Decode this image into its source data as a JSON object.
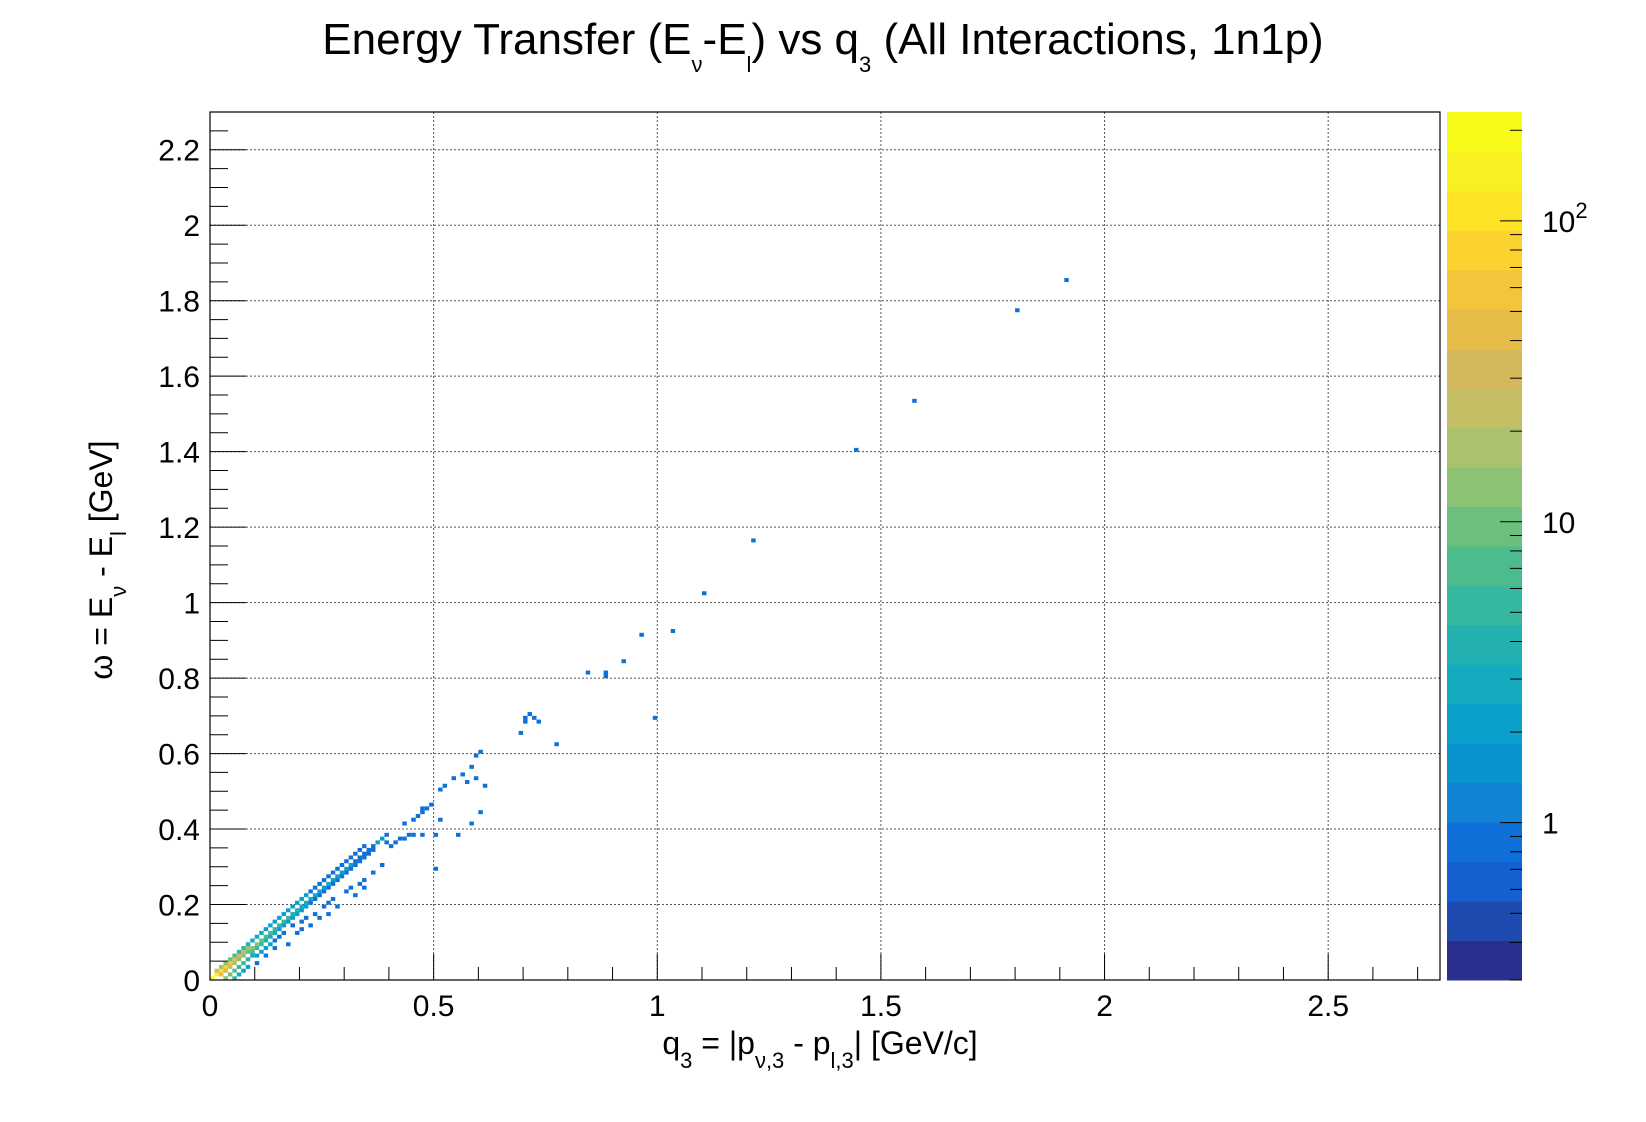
{
  "chart_data": {
    "type": "heatmap",
    "title_parts": [
      "Energy Transfer (E",
      "ν",
      "-E",
      "l",
      ") vs q",
      "3",
      " (All Interactions, 1n1p)"
    ],
    "xlabel_parts": [
      "q",
      "3",
      " = |p",
      "ν,3",
      " - p",
      "l,3",
      "| [GeV/c]"
    ],
    "ylabel_parts": [
      "ω = E",
      "ν",
      " - E",
      "l",
      " [GeV]"
    ],
    "xlim": [
      0,
      2.75
    ],
    "ylim": [
      0,
      2.3
    ],
    "x_ticks": [
      0,
      0.5,
      1,
      1.5,
      2,
      2.5
    ],
    "x_tick_labels": [
      "0",
      "0.5",
      "1",
      "1.5",
      "2",
      "2.5"
    ],
    "y_ticks": [
      0,
      0.2,
      0.4,
      0.6,
      0.8,
      1,
      1.2,
      1.4,
      1.6,
      1.8,
      2,
      2.2
    ],
    "y_tick_labels": [
      "0",
      "0.2",
      "0.4",
      "0.6",
      "0.8",
      "1",
      "1.2",
      "1.4",
      "1.6",
      "1.8",
      "2",
      "2.2"
    ],
    "grid": true,
    "z_scale": "log",
    "zlim": [
      0.3,
      230
    ],
    "z_ticks": [
      1,
      10,
      100
    ],
    "z_tick_labels": [
      "1",
      "10",
      "10^2"
    ],
    "palette": [
      "#2a2f8e",
      "#1f4bb0",
      "#1460d0",
      "#0e70d8",
      "#1282d4",
      "#0a94cf",
      "#0aa0cb",
      "#14aac0",
      "#22b0b0",
      "#36b8a0",
      "#4cbc8c",
      "#6ac07c",
      "#8cc274",
      "#aac26c",
      "#c4be64",
      "#d6b85c",
      "#e6bc48",
      "#f4c43a",
      "#fcd22e",
      "#fce324",
      "#f8f020",
      "#f8fa1a"
    ],
    "cells": [
      [
        0.005,
        0.005,
        200
      ],
      [
        0.015,
        0.015,
        150
      ],
      [
        0.025,
        0.025,
        120
      ],
      [
        0.035,
        0.035,
        80
      ],
      [
        0.045,
        0.045,
        60
      ],
      [
        0.055,
        0.055,
        45
      ],
      [
        0.065,
        0.065,
        35
      ],
      [
        0.075,
        0.075,
        25
      ],
      [
        0.085,
        0.085,
        20
      ],
      [
        0.095,
        0.085,
        15
      ],
      [
        0.105,
        0.095,
        12
      ],
      [
        0.115,
        0.105,
        10
      ],
      [
        0.125,
        0.115,
        8
      ],
      [
        0.135,
        0.125,
        7
      ],
      [
        0.145,
        0.135,
        6
      ],
      [
        0.155,
        0.145,
        5
      ],
      [
        0.165,
        0.155,
        6
      ],
      [
        0.175,
        0.165,
        5
      ],
      [
        0.185,
        0.175,
        4
      ],
      [
        0.195,
        0.185,
        4
      ],
      [
        0.205,
        0.195,
        3
      ],
      [
        0.215,
        0.205,
        3
      ],
      [
        0.225,
        0.215,
        3
      ],
      [
        0.235,
        0.225,
        3
      ],
      [
        0.245,
        0.235,
        2
      ],
      [
        0.255,
        0.245,
        2
      ],
      [
        0.265,
        0.255,
        3
      ],
      [
        0.275,
        0.265,
        2
      ],
      [
        0.285,
        0.275,
        2
      ],
      [
        0.295,
        0.285,
        2
      ],
      [
        0.305,
        0.295,
        2
      ],
      [
        0.315,
        0.305,
        2
      ],
      [
        0.325,
        0.315,
        1
      ],
      [
        0.335,
        0.325,
        1
      ],
      [
        0.345,
        0.335,
        1
      ],
      [
        0.355,
        0.345,
        1
      ],
      [
        0.365,
        0.355,
        1
      ],
      [
        0.375,
        0.365,
        2
      ],
      [
        0.385,
        0.375,
        2
      ],
      [
        0.395,
        0.385,
        1
      ],
      [
        0.025,
        0.015,
        40
      ],
      [
        0.035,
        0.025,
        30
      ],
      [
        0.045,
        0.035,
        25
      ],
      [
        0.055,
        0.045,
        20
      ],
      [
        0.065,
        0.055,
        15
      ],
      [
        0.075,
        0.065,
        12
      ],
      [
        0.085,
        0.075,
        10
      ],
      [
        0.095,
        0.075,
        8
      ],
      [
        0.105,
        0.085,
        6
      ],
      [
        0.115,
        0.095,
        5
      ],
      [
        0.125,
        0.105,
        4
      ],
      [
        0.135,
        0.115,
        3
      ],
      [
        0.145,
        0.125,
        3
      ],
      [
        0.155,
        0.135,
        2
      ],
      [
        0.165,
        0.145,
        2
      ],
      [
        0.175,
        0.155,
        2
      ],
      [
        0.185,
        0.165,
        2
      ],
      [
        0.195,
        0.175,
        2
      ],
      [
        0.205,
        0.185,
        2
      ],
      [
        0.215,
        0.195,
        2
      ],
      [
        0.225,
        0.205,
        1
      ],
      [
        0.235,
        0.215,
        1
      ],
      [
        0.245,
        0.225,
        1
      ],
      [
        0.255,
        0.235,
        1
      ],
      [
        0.265,
        0.245,
        1
      ],
      [
        0.275,
        0.255,
        1
      ],
      [
        0.285,
        0.265,
        1
      ],
      [
        0.295,
        0.275,
        1
      ],
      [
        0.305,
        0.285,
        1
      ],
      [
        0.315,
        0.295,
        1
      ],
      [
        0.325,
        0.305,
        1
      ],
      [
        0.335,
        0.315,
        1
      ],
      [
        0.345,
        0.325,
        1
      ],
      [
        0.355,
        0.335,
        1
      ],
      [
        0.365,
        0.345,
        1
      ],
      [
        0.015,
        0.025,
        30
      ],
      [
        0.025,
        0.035,
        20
      ],
      [
        0.035,
        0.045,
        12
      ],
      [
        0.045,
        0.055,
        10
      ],
      [
        0.055,
        0.065,
        8
      ],
      [
        0.065,
        0.075,
        6
      ],
      [
        0.075,
        0.085,
        5
      ],
      [
        0.085,
        0.095,
        4
      ],
      [
        0.095,
        0.105,
        3
      ],
      [
        0.105,
        0.115,
        3
      ],
      [
        0.115,
        0.125,
        3
      ],
      [
        0.125,
        0.135,
        2
      ],
      [
        0.135,
        0.145,
        2
      ],
      [
        0.145,
        0.155,
        2
      ],
      [
        0.155,
        0.165,
        2
      ],
      [
        0.165,
        0.175,
        2
      ],
      [
        0.175,
        0.185,
        2
      ],
      [
        0.185,
        0.195,
        2
      ],
      [
        0.195,
        0.205,
        2
      ],
      [
        0.205,
        0.215,
        2
      ],
      [
        0.215,
        0.225,
        2
      ],
      [
        0.225,
        0.235,
        1
      ],
      [
        0.235,
        0.245,
        1
      ],
      [
        0.245,
        0.255,
        1
      ],
      [
        0.255,
        0.265,
        1
      ],
      [
        0.265,
        0.275,
        1
      ],
      [
        0.275,
        0.285,
        1
      ],
      [
        0.285,
        0.295,
        1
      ],
      [
        0.295,
        0.305,
        1
      ],
      [
        0.305,
        0.315,
        1
      ],
      [
        0.315,
        0.325,
        1
      ],
      [
        0.325,
        0.335,
        1
      ],
      [
        0.335,
        0.345,
        1
      ],
      [
        0.345,
        0.355,
        1
      ],
      [
        0.035,
        0.005,
        15
      ],
      [
        0.045,
        0.015,
        10
      ],
      [
        0.055,
        0.025,
        8
      ],
      [
        0.065,
        0.035,
        6
      ],
      [
        0.075,
        0.045,
        5
      ],
      [
        0.085,
        0.055,
        4
      ],
      [
        0.095,
        0.065,
        3
      ],
      [
        0.105,
        0.065,
        2
      ],
      [
        0.115,
        0.075,
        2
      ],
      [
        0.125,
        0.085,
        2
      ],
      [
        0.135,
        0.095,
        2
      ],
      [
        0.145,
        0.105,
        1
      ],
      [
        0.155,
        0.115,
        1
      ],
      [
        0.165,
        0.125,
        1
      ],
      [
        0.185,
        0.145,
        1
      ],
      [
        0.205,
        0.155,
        1
      ],
      [
        0.215,
        0.165,
        1
      ],
      [
        0.235,
        0.175,
        1
      ],
      [
        0.255,
        0.195,
        1
      ],
      [
        0.265,
        0.205,
        1
      ],
      [
        0.275,
        0.215,
        1
      ],
      [
        0.305,
        0.235,
        1
      ],
      [
        0.315,
        0.245,
        1
      ],
      [
        0.335,
        0.255,
        1
      ],
      [
        0.345,
        0.265,
        1
      ],
      [
        0.365,
        0.285,
        1
      ],
      [
        0.385,
        0.305,
        1
      ],
      [
        0.055,
        0.005,
        5
      ],
      [
        0.065,
        0.015,
        3
      ],
      [
        0.075,
        0.025,
        2
      ],
      [
        0.085,
        0.035,
        2
      ],
      [
        0.105,
        0.045,
        1
      ],
      [
        0.125,
        0.065,
        1
      ],
      [
        0.145,
        0.085,
        1
      ],
      [
        0.175,
        0.095,
        1
      ],
      [
        0.195,
        0.125,
        1
      ],
      [
        0.205,
        0.135,
        1
      ],
      [
        0.225,
        0.145,
        1
      ],
      [
        0.245,
        0.165,
        1
      ],
      [
        0.265,
        0.175,
        1
      ],
      [
        0.285,
        0.195,
        1
      ],
      [
        0.325,
        0.225,
        1
      ],
      [
        0.345,
        0.245,
        1
      ],
      [
        0.405,
        0.355,
        1
      ],
      [
        0.415,
        0.365,
        1
      ],
      [
        0.395,
        0.365,
        1
      ],
      [
        0.425,
        0.375,
        1
      ],
      [
        0.435,
        0.375,
        1
      ],
      [
        0.445,
        0.385,
        1
      ],
      [
        0.435,
        0.415,
        1
      ],
      [
        0.455,
        0.425,
        1
      ],
      [
        0.465,
        0.435,
        1
      ],
      [
        0.475,
        0.445,
        1
      ],
      [
        0.485,
        0.455,
        1
      ],
      [
        0.495,
        0.465,
        1
      ],
      [
        0.475,
        0.455,
        1
      ],
      [
        0.455,
        0.385,
        1
      ],
      [
        0.475,
        0.385,
        1
      ],
      [
        0.505,
        0.385,
        1
      ],
      [
        0.515,
        0.425,
        1
      ],
      [
        0.505,
        0.295,
        1
      ],
      [
        0.555,
        0.385,
        1
      ],
      [
        0.585,
        0.415,
        1
      ],
      [
        0.605,
        0.445,
        1
      ],
      [
        0.515,
        0.505,
        1
      ],
      [
        0.525,
        0.515,
        1
      ],
      [
        0.545,
        0.535,
        1
      ],
      [
        0.565,
        0.545,
        1
      ],
      [
        0.575,
        0.525,
        1
      ],
      [
        0.585,
        0.565,
        1
      ],
      [
        0.595,
        0.595,
        1
      ],
      [
        0.605,
        0.605,
        1
      ],
      [
        0.595,
        0.535,
        1
      ],
      [
        0.615,
        0.515,
        1
      ],
      [
        0.695,
        0.655,
        1
      ],
      [
        0.705,
        0.695,
        1
      ],
      [
        0.715,
        0.705,
        1
      ],
      [
        0.725,
        0.695,
        1
      ],
      [
        0.735,
        0.685,
        1
      ],
      [
        0.705,
        0.685,
        1
      ],
      [
        0.775,
        0.625,
        1
      ],
      [
        0.845,
        0.815,
        1
      ],
      [
        0.885,
        0.805,
        1
      ],
      [
        0.885,
        0.815,
        1
      ],
      [
        0.925,
        0.845,
        1
      ],
      [
        0.965,
        0.915,
        1
      ],
      [
        0.995,
        0.695,
        1
      ],
      [
        1.035,
        0.925,
        1
      ],
      [
        1.105,
        1.025,
        1
      ],
      [
        1.215,
        1.165,
        1
      ],
      [
        1.445,
        1.405,
        1
      ],
      [
        1.575,
        1.535,
        1
      ],
      [
        1.805,
        1.775,
        1
      ],
      [
        1.915,
        1.855,
        1
      ]
    ],
    "cell_size": [
      0.01,
      0.01
    ]
  }
}
